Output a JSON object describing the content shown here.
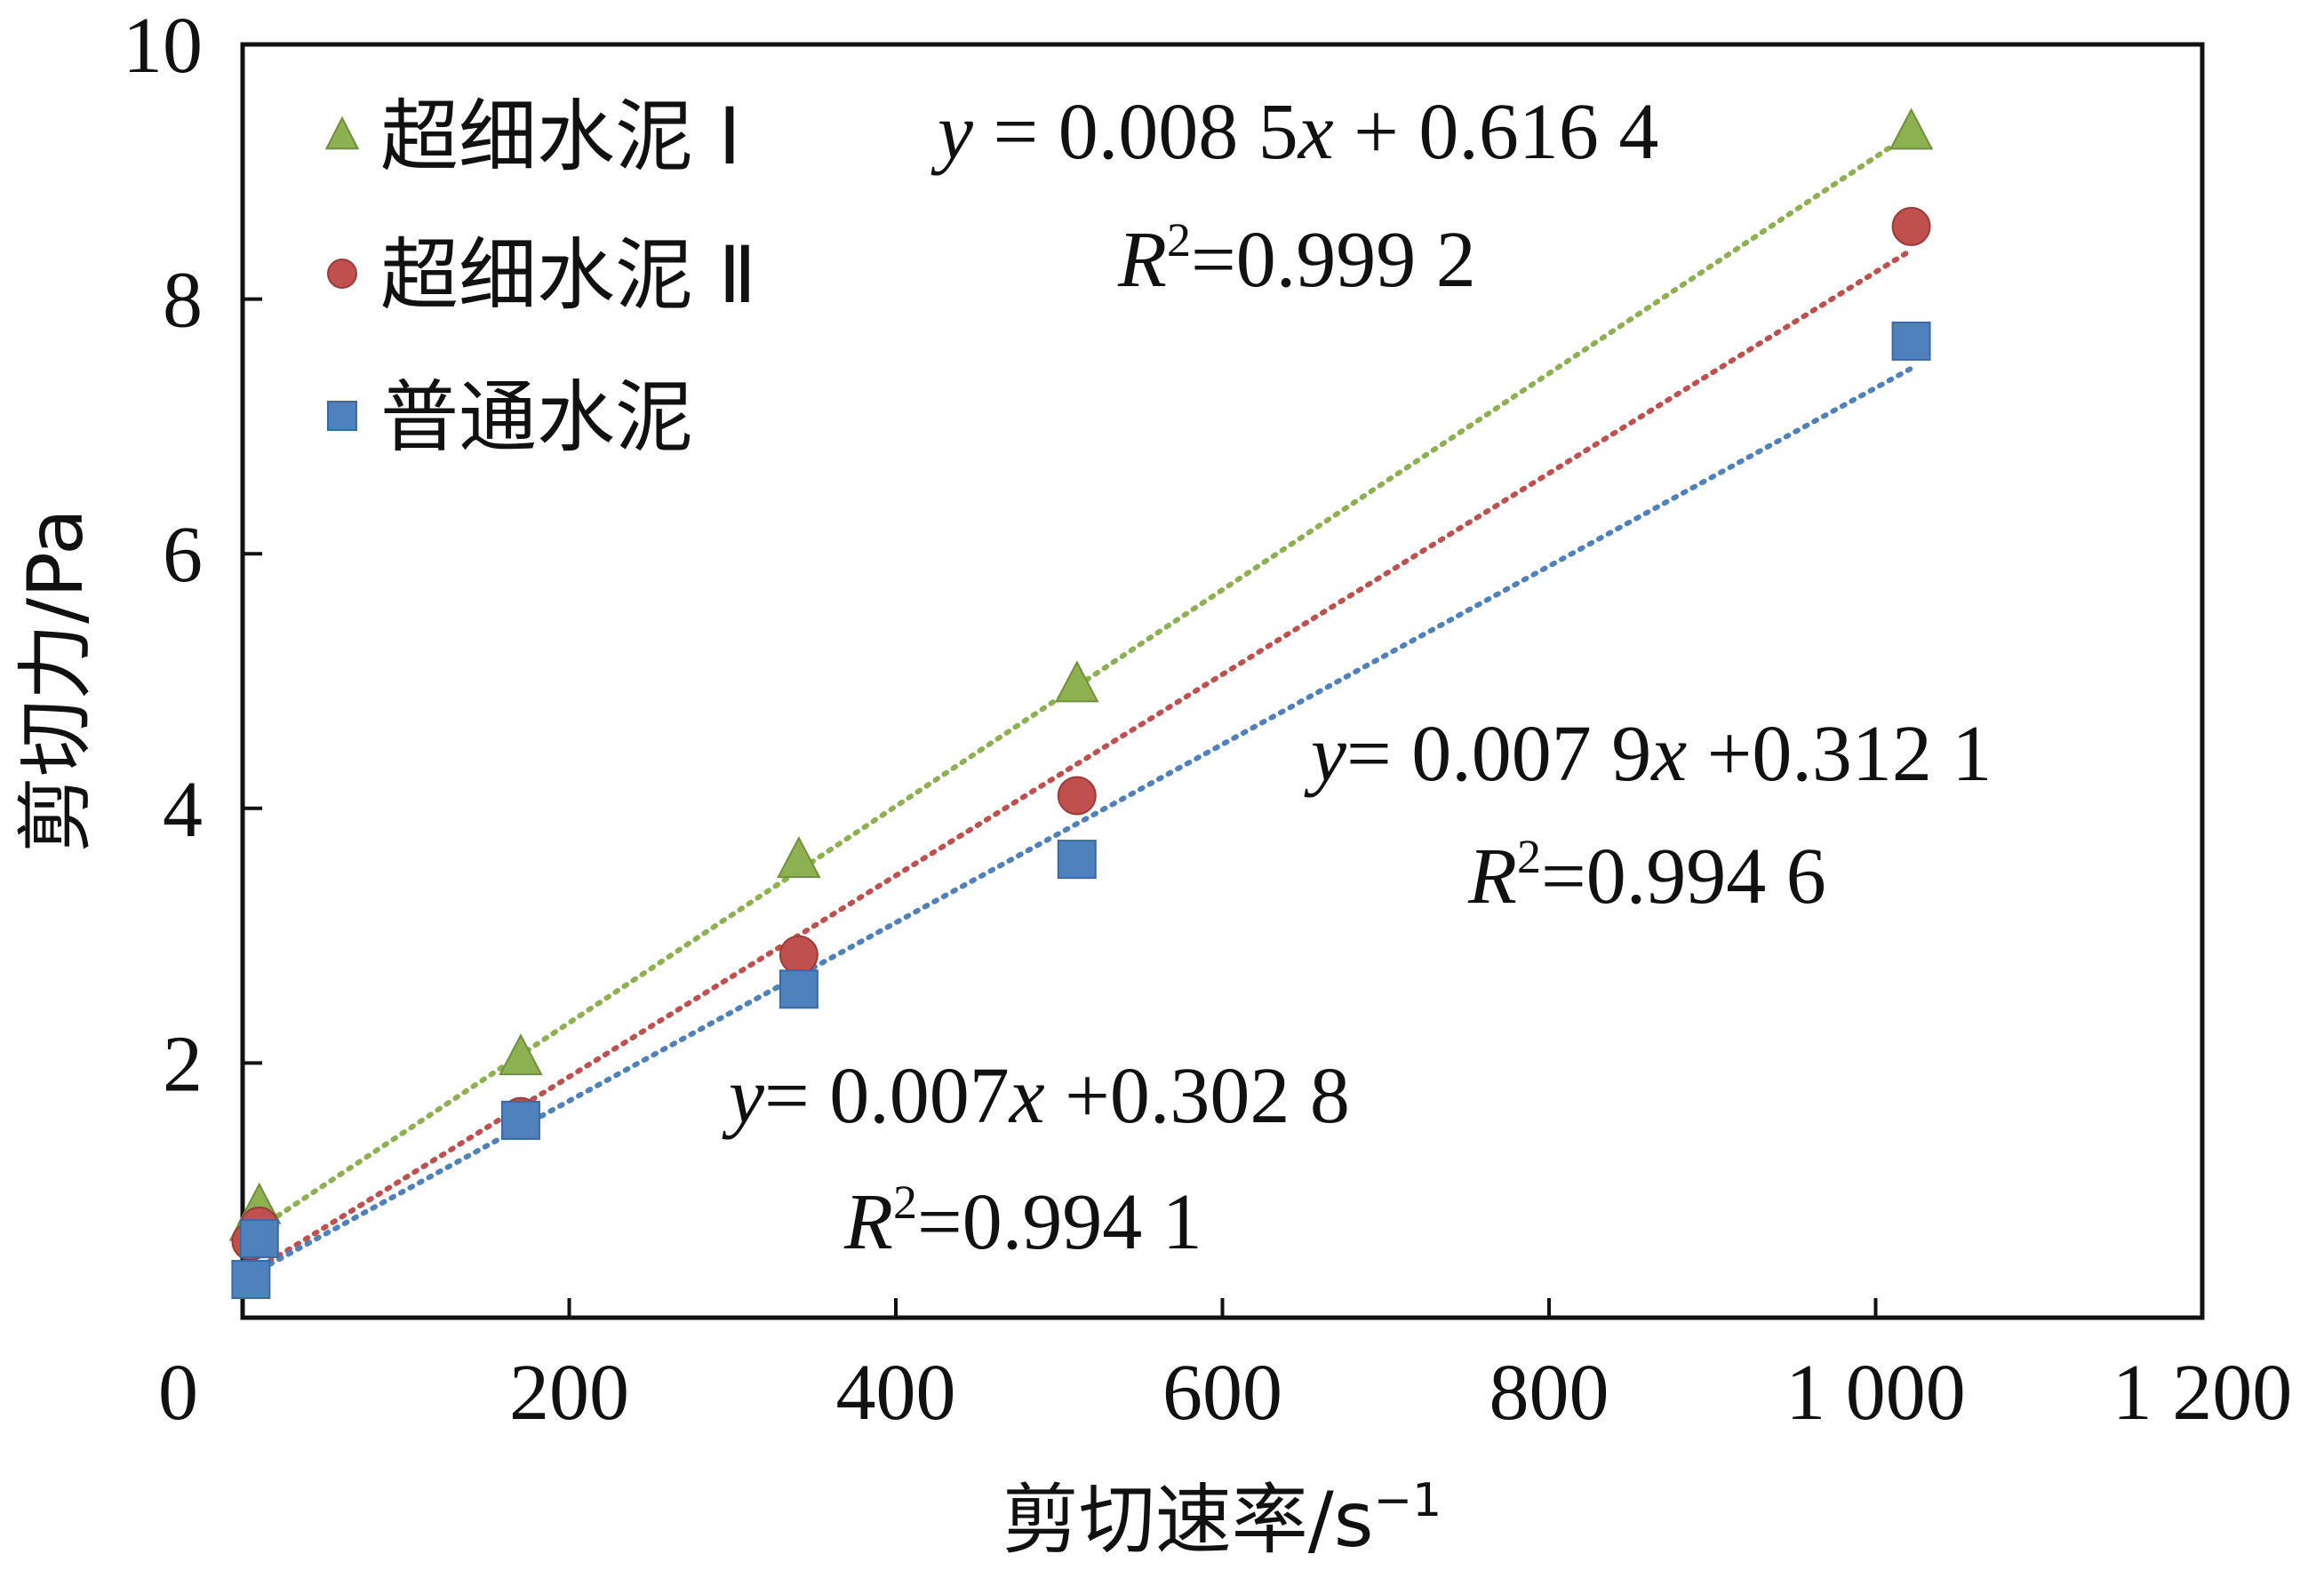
{
  "chart_data": {
    "type": "scatter",
    "xlabel": "剪切速率/s",
    "xlabel_sup": "−1",
    "ylabel": "剪切力/Pa",
    "xlim": [
      0,
      1200
    ],
    "ylim": [
      0,
      10
    ],
    "x_ticks": [
      0,
      200,
      400,
      600,
      800,
      1000,
      1200
    ],
    "x_tick_labels": [
      "0",
      "200",
      "400",
      "600",
      "800",
      "1 000",
      "1 200"
    ],
    "y_ticks": [
      2,
      4,
      6,
      8,
      10
    ],
    "y_tick_labels": [
      "2",
      "4",
      "6",
      "8",
      "10"
    ],
    "grid": false,
    "legend_position": "top-left",
    "series": [
      {
        "name": "超细水泥 Ⅰ",
        "marker": "triangle",
        "color": "#8DB051",
        "x": [
          5.1,
          10.2,
          170.3,
          340.6,
          510.9,
          1021.8
        ],
        "y": [
          0.75,
          0.88,
          2.05,
          3.6,
          4.98,
          9.32
        ],
        "trendline": {
          "slope": 0.0085,
          "intercept": 0.6164,
          "x_range": [
            5.1,
            1021.8
          ]
        },
        "equation": {
          "y_var": "y",
          "text1": " = 0.008 5",
          "x_var": "x",
          "text2": " + 0.616 4",
          "r_var": "R",
          "r_sup": "2",
          "r_text": "=0.999 2"
        }
      },
      {
        "name": "超细水泥 Ⅱ",
        "marker": "circle",
        "color": "#C0504D",
        "x": [
          5.1,
          10.2,
          170.3,
          340.6,
          510.9,
          1021.8
        ],
        "y": [
          0.6,
          0.72,
          1.58,
          2.85,
          4.1,
          8.57
        ],
        "trendline": {
          "slope": 0.0079,
          "intercept": 0.3121,
          "x_range": [
            5.1,
            1021.8
          ]
        },
        "equation": {
          "y_var": "y",
          "text1": "= 0.007 9",
          "x_var": "x",
          "text2": " +0.312 1",
          "r_var": "R",
          "r_sup": "2",
          "r_text": "=0.994 6"
        }
      },
      {
        "name": "普通水泥",
        "marker": "square",
        "color": "#4F81BD",
        "x": [
          5.1,
          10.2,
          170.3,
          340.6,
          510.9,
          1021.8
        ],
        "y": [
          0.3,
          0.62,
          1.55,
          2.58,
          3.6,
          7.67
        ],
        "trendline": {
          "slope": 0.007,
          "intercept": 0.3028,
          "x_range": [
            5.1,
            1021.8
          ]
        },
        "equation": {
          "y_var": "y",
          "text1": "= 0.007",
          "x_var": "x",
          "text2": " +0.302 8",
          "r_var": "R",
          "r_sup": "2",
          "r_text": "=0.994 1"
        }
      }
    ]
  }
}
